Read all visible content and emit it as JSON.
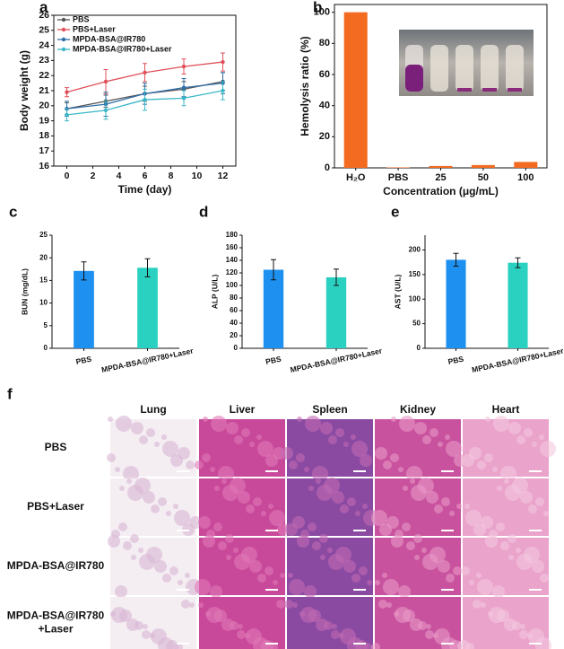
{
  "chart_data": [
    {
      "type": "line",
      "panel": "a",
      "xlabel": "Time (day)",
      "ylabel": "Body weight (g)",
      "x": [
        0,
        3,
        6,
        9,
        12
      ],
      "xlim": [
        -1,
        13
      ],
      "xticks": [
        0,
        2,
        4,
        6,
        8,
        10,
        12
      ],
      "ylim": [
        16,
        26
      ],
      "yticks": [
        16,
        17,
        18,
        19,
        20,
        21,
        22,
        23,
        24,
        25,
        26
      ],
      "frame": true,
      "legend": "top-left",
      "series": [
        {
          "name": "PBS",
          "color": "#555555",
          "values": [
            19.8,
            20.3,
            20.8,
            21.1,
            21.6
          ],
          "errors": [
            0.4,
            0.4,
            0.5,
            0.5,
            0.6
          ]
        },
        {
          "name": "PBS+Laser",
          "color": "#e0505a",
          "values": [
            20.9,
            21.6,
            22.2,
            22.6,
            22.9
          ],
          "errors": [
            0.3,
            0.8,
            0.6,
            0.5,
            0.6
          ]
        },
        {
          "name": "MPDA-BSA@IR780",
          "color": "#2f6fa8",
          "values": [
            19.8,
            20.1,
            20.8,
            21.2,
            21.5
          ],
          "errors": [
            0.5,
            0.8,
            0.7,
            0.6,
            0.7
          ]
        },
        {
          "name": "MPDA-BSA@IR780+Laser",
          "color": "#3ab7c8",
          "values": [
            19.4,
            19.7,
            20.4,
            20.5,
            21.0
          ],
          "errors": [
            0.4,
            0.6,
            0.7,
            0.5,
            0.6
          ]
        }
      ]
    },
    {
      "type": "bar",
      "panel": "b",
      "xlabel": "Concentration (μg/mL)",
      "ylabel": "Hemolysis ratio (%)",
      "categories": [
        "H₂O",
        "PBS",
        "25",
        "50",
        "100"
      ],
      "values": [
        100,
        0.3,
        1.2,
        1.8,
        3.8
      ],
      "colors": [
        "#f26b21",
        "#f26b21",
        "#f26b21",
        "#f26b21",
        "#f26b21"
      ],
      "ylim": [
        0,
        105
      ],
      "yticks": [
        0,
        20,
        40,
        60,
        80,
        100
      ],
      "frame": true
    },
    {
      "type": "bar",
      "panel": "c",
      "ylabel": "BUN (mg/dL)",
      "categories": [
        "PBS",
        "MPDA-BSA@IR780+Laser"
      ],
      "values": [
        17.1,
        17.8
      ],
      "errors": [
        2.0,
        2.0
      ],
      "colors": [
        "#1e90f0",
        "#2ad1c0"
      ],
      "ylim": [
        0,
        25
      ],
      "yticks": [
        0,
        5,
        10,
        15,
        20,
        25
      ],
      "frame": false
    },
    {
      "type": "bar",
      "panel": "d",
      "ylabel": "ALP (U/L)",
      "categories": [
        "PBS",
        "MPDA-BSA@IR780+Laser"
      ],
      "values": [
        125,
        113
      ],
      "errors": [
        16,
        13
      ],
      "colors": [
        "#1e90f0",
        "#2ad1c0"
      ],
      "ylim": [
        0,
        180
      ],
      "yticks": [
        0,
        20,
        40,
        60,
        80,
        100,
        120,
        140,
        160,
        180
      ],
      "frame": false
    },
    {
      "type": "bar",
      "panel": "e",
      "ylabel": "AST (U/L)",
      "categories": [
        "PBS",
        "MPDA-BSA@IR780+Laser"
      ],
      "values": [
        180,
        174
      ],
      "errors": [
        13,
        10
      ],
      "colors": [
        "#1e90f0",
        "#2ad1c0"
      ],
      "ylim": [
        0,
        230
      ],
      "yticks": [
        0,
        50,
        100,
        150,
        200
      ],
      "frame": false
    }
  ],
  "panel_f": {
    "panel": "f",
    "columns": [
      "Lung",
      "Liver",
      "Spleen",
      "Kidney",
      "Heart"
    ],
    "rows": [
      [
        "PBS"
      ],
      [
        "PBS+Laser"
      ],
      [
        "MPDA-BSA@IR780"
      ],
      [
        "MPDA-BSA@IR780",
        "+Laser"
      ]
    ]
  }
}
